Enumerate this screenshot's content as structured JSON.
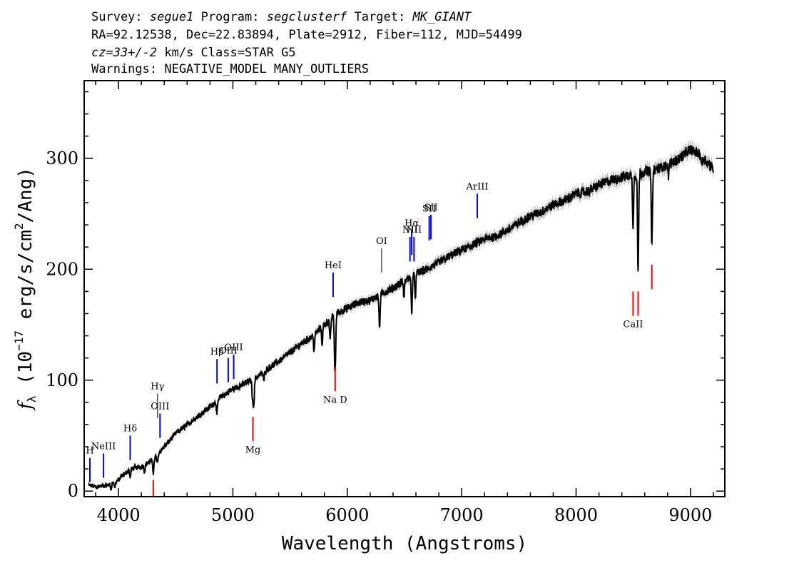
{
  "header": {
    "survey_label": "Survey:",
    "survey": "segue1",
    "program_label": "Program:",
    "program": "segclusterf",
    "target_label": "Target:",
    "target": "MK_GIANT",
    "line2": "RA=92.12538, Dec=22.83894, Plate=2912, Fiber=112, MJD=54499",
    "cz": "cz=33+/-2",
    "line3_rest": "km/s Class=STAR G5",
    "line4": "Warnings: NEGATIVE_MODEL MANY_OUTLIERS"
  },
  "chart_data": {
    "type": "line",
    "xlabel": "Wavelength (Angstroms)",
    "ylabel": "f_λ (10^-17 erg/s/cm^2/Ang)",
    "xlim": [
      3700,
      9300
    ],
    "ylim": [
      -5,
      370
    ],
    "xticks": [
      4000,
      5000,
      6000,
      7000,
      8000,
      9000
    ],
    "yticks": [
      0,
      100,
      200,
      300
    ],
    "continuum": [
      [
        3750,
        5
      ],
      [
        3800,
        4
      ],
      [
        3900,
        5
      ],
      [
        4000,
        10
      ],
      [
        4100,
        20
      ],
      [
        4200,
        22
      ],
      [
        4300,
        28
      ],
      [
        4400,
        40
      ],
      [
        4500,
        52
      ],
      [
        4600,
        60
      ],
      [
        4700,
        68
      ],
      [
        4800,
        76
      ],
      [
        4900,
        85
      ],
      [
        5000,
        92
      ],
      [
        5100,
        97
      ],
      [
        5200,
        102
      ],
      [
        5300,
        110
      ],
      [
        5400,
        117
      ],
      [
        5500,
        125
      ],
      [
        5600,
        133
      ],
      [
        5700,
        140
      ],
      [
        5800,
        150
      ],
      [
        5900,
        160
      ],
      [
        6000,
        165
      ],
      [
        6100,
        170
      ],
      [
        6200,
        172
      ],
      [
        6300,
        178
      ],
      [
        6400,
        183
      ],
      [
        6500,
        190
      ],
      [
        6600,
        196
      ],
      [
        6700,
        200
      ],
      [
        6800,
        206
      ],
      [
        6900,
        212
      ],
      [
        7000,
        217
      ],
      [
        7100,
        222
      ],
      [
        7200,
        227
      ],
      [
        7300,
        230
      ],
      [
        7400,
        235
      ],
      [
        7500,
        242
      ],
      [
        7600,
        248
      ],
      [
        7700,
        252
      ],
      [
        7800,
        258
      ],
      [
        7900,
        262
      ],
      [
        8000,
        268
      ],
      [
        8100,
        270
      ],
      [
        8200,
        276
      ],
      [
        8300,
        280
      ],
      [
        8400,
        283
      ],
      [
        8500,
        285
      ],
      [
        8600,
        288
      ],
      [
        8700,
        290
      ],
      [
        8800,
        294
      ],
      [
        8900,
        300
      ],
      [
        9000,
        308
      ],
      [
        9100,
        302
      ],
      [
        9200,
        290
      ]
    ],
    "absorption_features": [
      {
        "wavelength": 3933,
        "depth": 5
      },
      {
        "wavelength": 3968,
        "depth": 5
      },
      {
        "wavelength": 4102,
        "depth": 8
      },
      {
        "wavelength": 4227,
        "depth": 6
      },
      {
        "wavelength": 4305,
        "depth": 12
      },
      {
        "wavelength": 4340,
        "depth": 8
      },
      {
        "wavelength": 4861,
        "depth": 12
      },
      {
        "wavelength": 5172,
        "depth": 18
      },
      {
        "wavelength": 5183,
        "depth": 22
      },
      {
        "wavelength": 5270,
        "depth": 8
      },
      {
        "wavelength": 5710,
        "depth": 14
      },
      {
        "wavelength": 5780,
        "depth": 15
      },
      {
        "wavelength": 5850,
        "depth": 20
      },
      {
        "wavelength": 5890,
        "depth": 32
      },
      {
        "wavelength": 5896,
        "depth": 30
      },
      {
        "wavelength": 6282,
        "depth": 30
      },
      {
        "wavelength": 6495,
        "depth": 14
      },
      {
        "wavelength": 6563,
        "depth": 32
      },
      {
        "wavelength": 6595,
        "depth": 20
      },
      {
        "wavelength": 8498,
        "depth": 45
      },
      {
        "wavelength": 8542,
        "depth": 88
      },
      {
        "wavelength": 8662,
        "depth": 70
      },
      {
        "wavelength": 8806,
        "depth": 10
      },
      {
        "wavelength": 9100,
        "depth": 8
      }
    ],
    "emission_line_markers": [
      {
        "label": "H",
        "wavelength": 3750,
        "ymin": 8,
        "ymax": 30,
        "color": "#0000ff"
      },
      {
        "label": "NeIII",
        "wavelength": 3869,
        "ymin": 12,
        "ymax": 34,
        "color": "#0000ff"
      },
      {
        "label": "Hδ",
        "wavelength": 4102,
        "ymin": 28,
        "ymax": 50,
        "color": "#0000ff"
      },
      {
        "label": "Hγ",
        "wavelength": 4341,
        "ymin": 66,
        "ymax": 88,
        "color": "#000000"
      },
      {
        "label": "OIII",
        "wavelength": 4363,
        "ymin": 48,
        "ymax": 70,
        "color": "#0000ff"
      },
      {
        "label": "Hβ",
        "wavelength": 4861,
        "ymin": 97,
        "ymax": 119,
        "color": "#0000ff"
      },
      {
        "label": "OIII",
        "wavelength": 4959,
        "ymin": 98,
        "ymax": 120,
        "color": "#0000ff"
      },
      {
        "label": "OIII",
        "wavelength": 5007,
        "ymin": 101,
        "ymax": 123,
        "color": "#0000ff"
      },
      {
        "label": "HeI",
        "wavelength": 5876,
        "ymin": 175,
        "ymax": 197,
        "color": "#0000ff"
      },
      {
        "label": "OI",
        "wavelength": 6300,
        "ymin": 197,
        "ymax": 219,
        "color": "#000000"
      },
      {
        "label": "NII",
        "wavelength": 6548,
        "ymin": 207,
        "ymax": 229,
        "color": "#0000ff"
      },
      {
        "label": "Hα",
        "wavelength": 6563,
        "ymin": 213,
        "ymax": 235,
        "color": "#0000ff"
      },
      {
        "label": "NII",
        "wavelength": 6583,
        "ymin": 207,
        "ymax": 229,
        "color": "#0000ff"
      },
      {
        "label": "SII",
        "wavelength": 6716,
        "ymin": 226,
        "ymax": 248,
        "color": "#0000ff"
      },
      {
        "label": "SII",
        "wavelength": 6731,
        "ymin": 227,
        "ymax": 249,
        "color": "#0000ff"
      },
      {
        "label": "ArIII",
        "wavelength": 7136,
        "ymin": 246,
        "ymax": 268,
        "color": "#0000ff"
      }
    ],
    "absorption_line_markers": [
      {
        "label": "",
        "wavelength": 4304,
        "ymin": -5,
        "ymax": 10,
        "color": "#ff0000"
      },
      {
        "label": "Mg",
        "wavelength": 5175,
        "ymin": 45,
        "ymax": 67,
        "color": "#ff0000"
      },
      {
        "label": "Na D",
        "wavelength": 5894,
        "ymin": 90,
        "ymax": 112,
        "color": "#ff0000"
      },
      {
        "label": "CaII",
        "wavelength": 8498,
        "ymin": 158,
        "ymax": 180,
        "color": "#ff0000"
      },
      {
        "label": "",
        "wavelength": 8542,
        "ymin": 158,
        "ymax": 180,
        "color": "#ff0000"
      },
      {
        "label": "",
        "wavelength": 8662,
        "ymin": 182,
        "ymax": 204,
        "color": "#ff0000"
      }
    ],
    "colors": {
      "spectrum": "#000000",
      "error_band": "#b0b0b0",
      "emission": "#0000ff",
      "absorption": "#ff0000"
    }
  }
}
